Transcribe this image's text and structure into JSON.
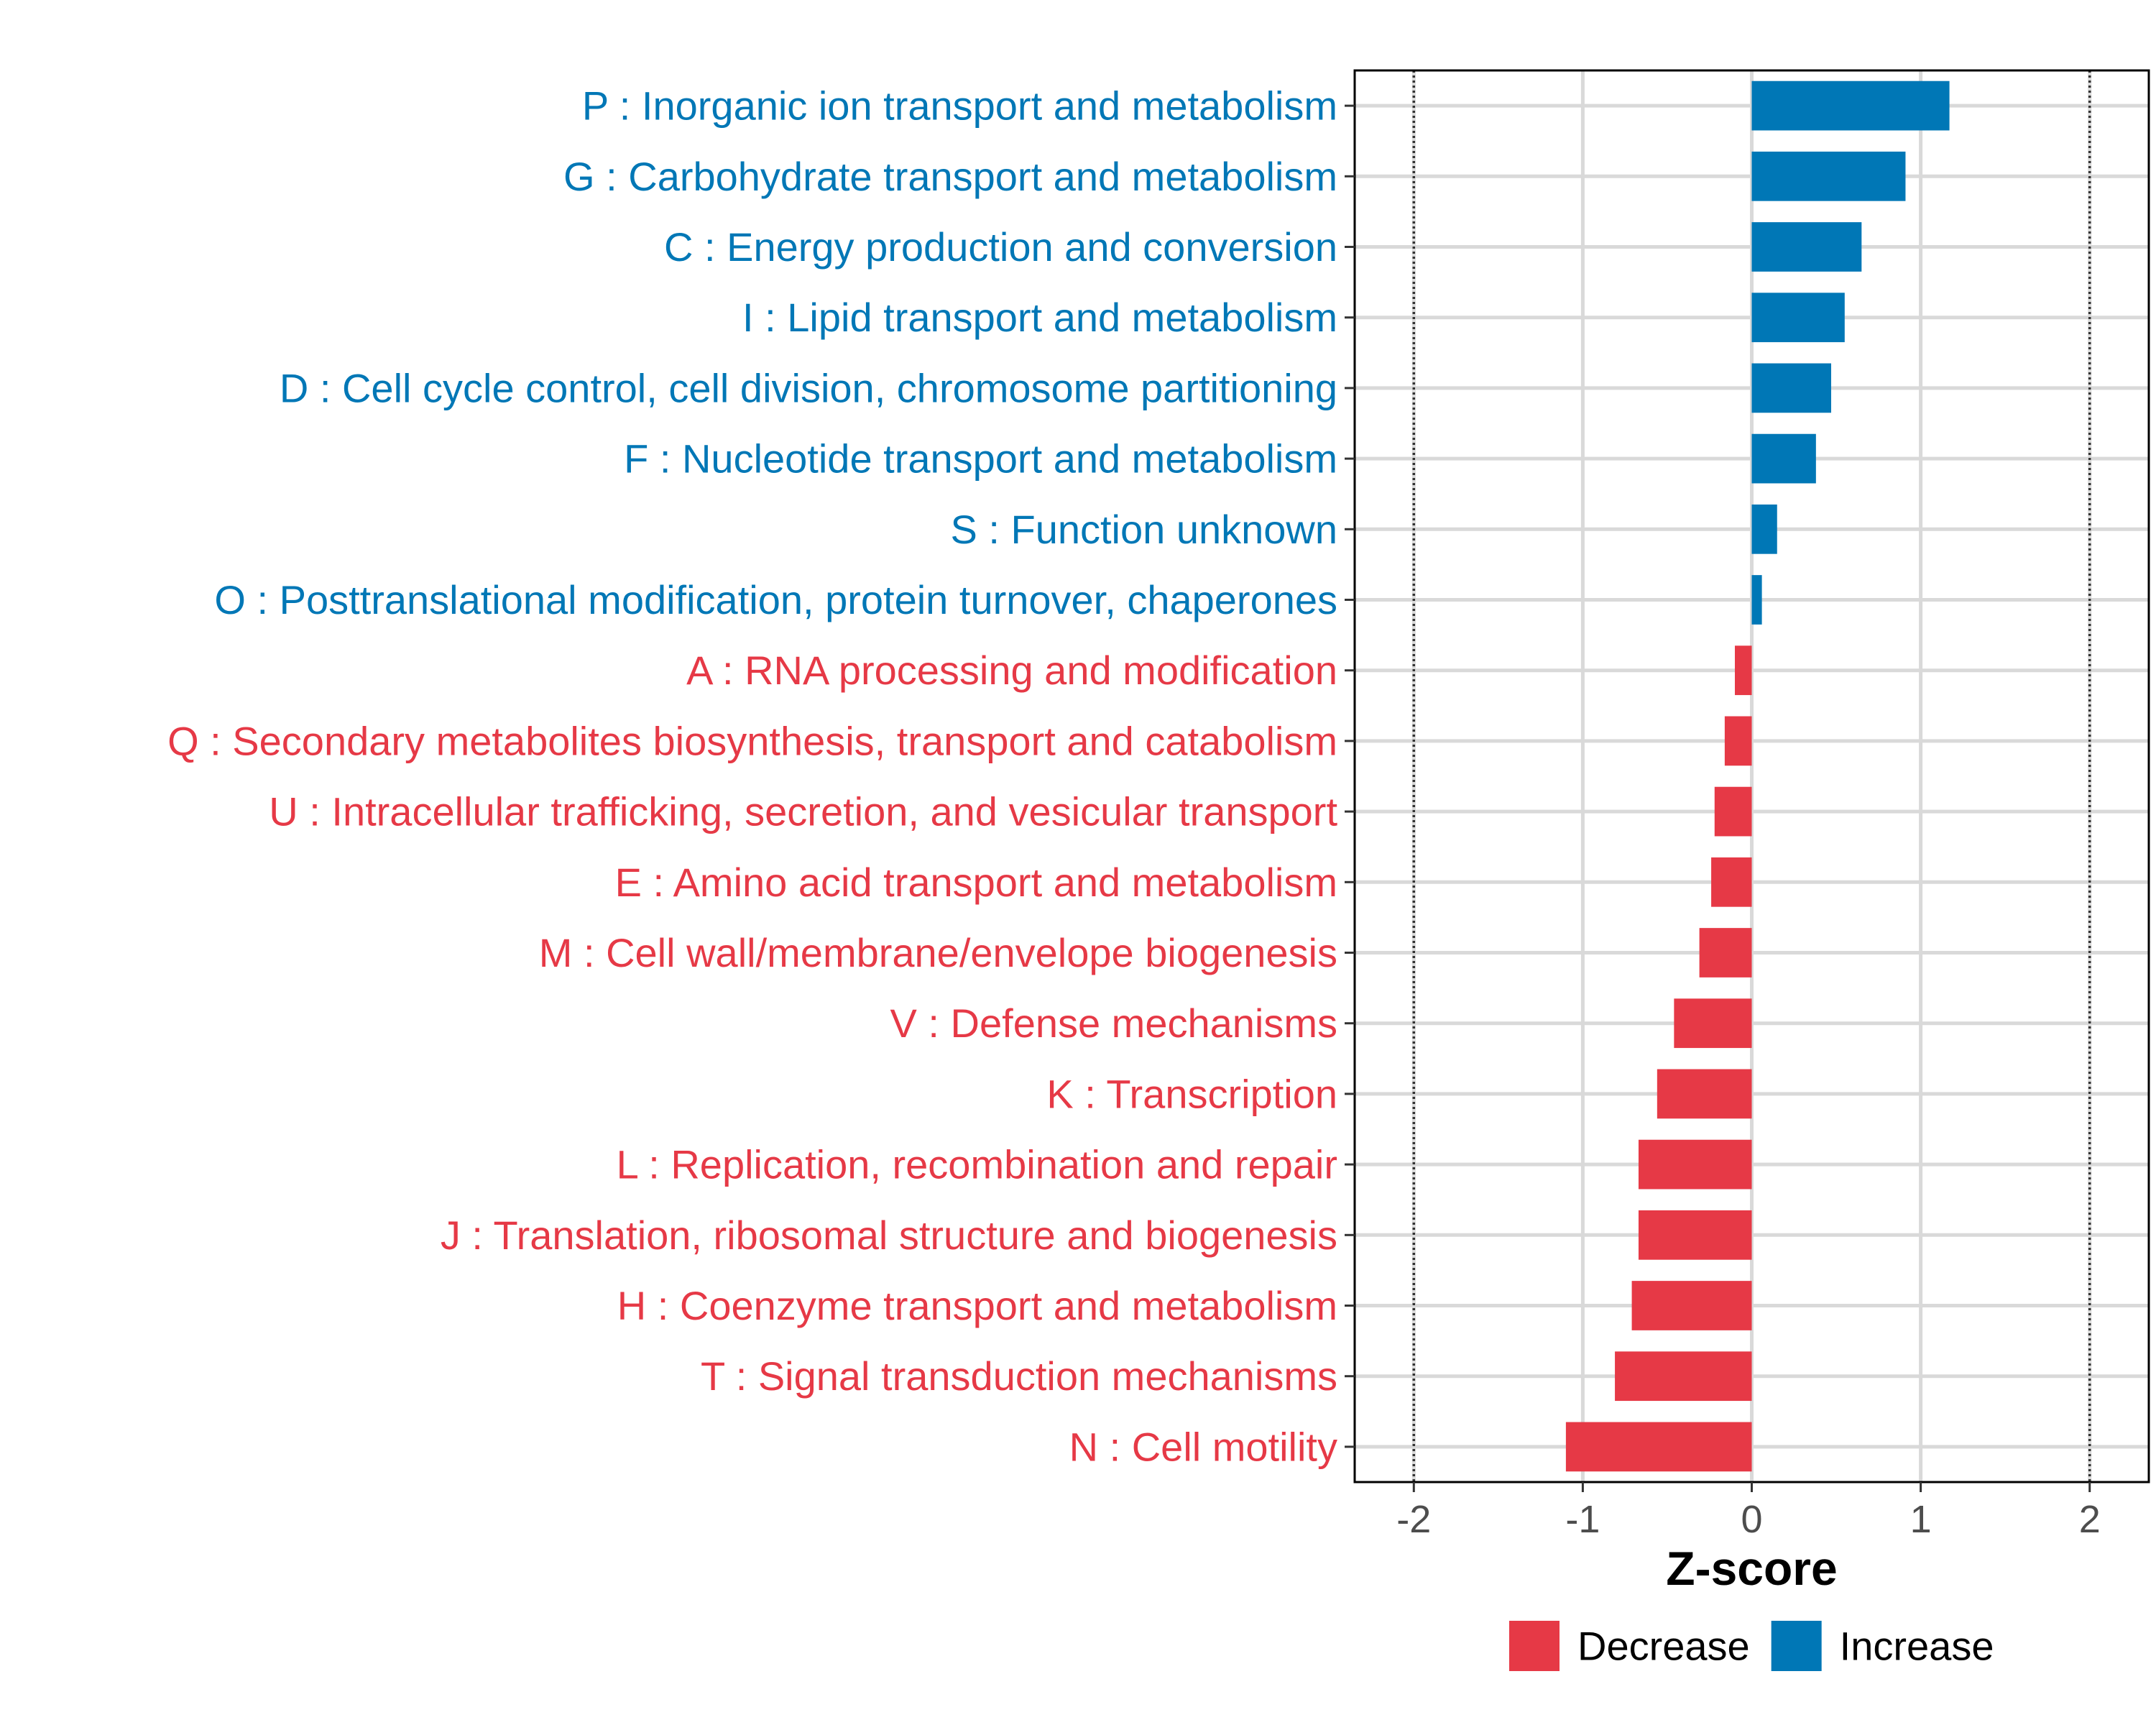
{
  "chart_data": {
    "type": "bar",
    "orientation": "horizontal",
    "title": "",
    "xlabel": "Z-score",
    "ylabel": "",
    "xlim": [
      -2.35,
      2.35
    ],
    "x_ticks": [
      -2,
      -1,
      0,
      1,
      2
    ],
    "x_tick_labels": [
      "-2",
      "-1",
      "0",
      "1",
      "2"
    ],
    "reference_lines": [
      -2,
      2
    ],
    "grid": true,
    "categories": [
      "P : Inorganic ion transport and metabolism",
      "G : Carbohydrate transport and metabolism",
      "C : Energy production and conversion",
      "I : Lipid transport and metabolism",
      "D : Cell cycle control, cell division, chromosome partitioning",
      "F : Nucleotide transport and metabolism",
      "S : Function unknown",
      "O : Posttranslational modification, protein turnover, chaperones",
      "A : RNA processing and modification",
      "Q : Secondary metabolites biosynthesis, transport and catabolism",
      "U : Intracellular trafficking, secretion, and vesicular transport",
      "E : Amino acid transport and metabolism",
      "M : Cell wall/membrane/envelope biogenesis",
      "V : Defense mechanisms",
      "K : Transcription",
      "L : Replication, recombination and repair",
      "J : Translation, ribosomal structure and biogenesis",
      "H : Coenzyme transport and metabolism",
      "T : Signal transduction mechanisms",
      "N : Cell motility"
    ],
    "values": [
      1.17,
      0.91,
      0.65,
      0.55,
      0.47,
      0.38,
      0.15,
      0.06,
      -0.1,
      -0.16,
      -0.22,
      -0.24,
      -0.31,
      -0.46,
      -0.56,
      -0.67,
      -0.67,
      -0.71,
      -0.81,
      -1.1
    ],
    "groups": [
      "Increase",
      "Increase",
      "Increase",
      "Increase",
      "Increase",
      "Increase",
      "Increase",
      "Increase",
      "Decrease",
      "Decrease",
      "Decrease",
      "Decrease",
      "Decrease",
      "Decrease",
      "Decrease",
      "Decrease",
      "Decrease",
      "Decrease",
      "Decrease",
      "Decrease"
    ],
    "legend": {
      "position": "bottom",
      "entries": [
        {
          "label": "Decrease",
          "color": "#e63946"
        },
        {
          "label": "Increase",
          "color": "#0077b6"
        }
      ]
    },
    "colors": {
      "Increase": "#0077b6",
      "Decrease": "#e63946"
    }
  }
}
